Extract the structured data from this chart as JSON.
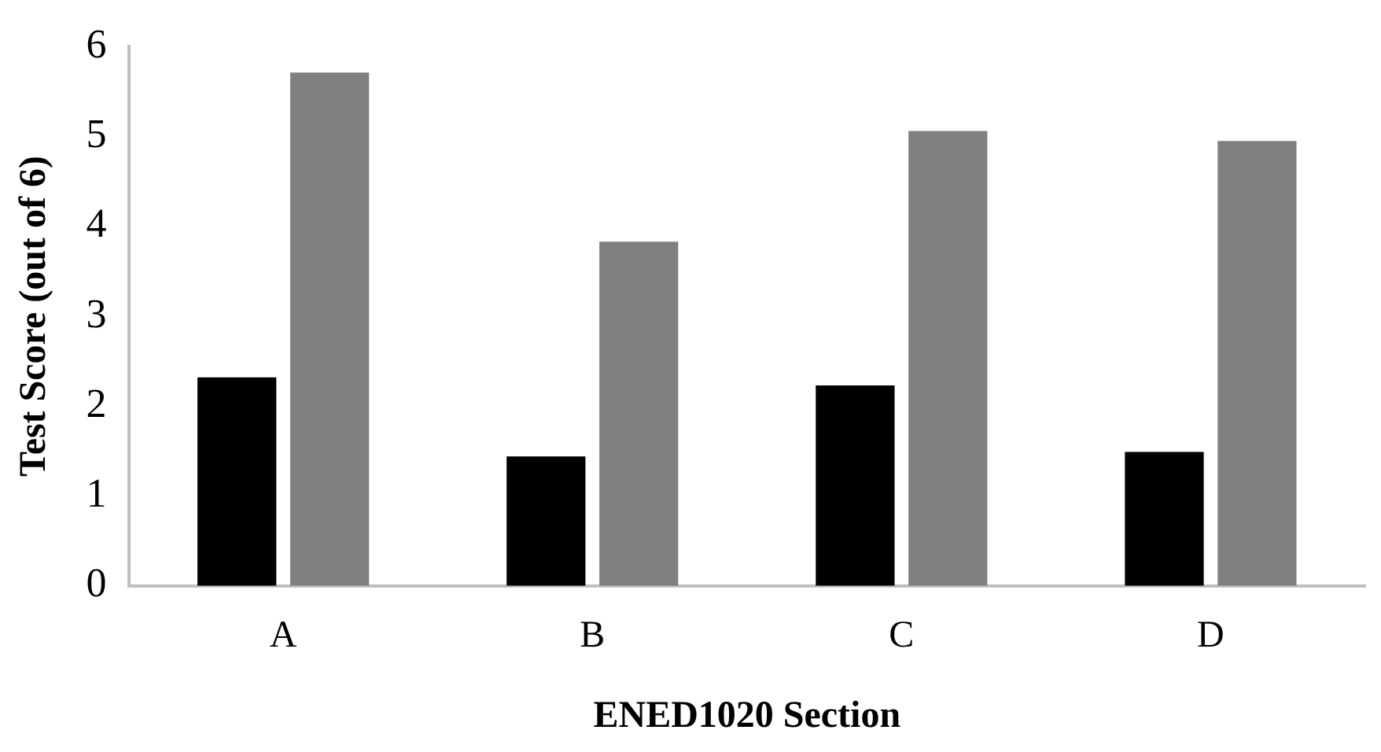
{
  "chart_data": {
    "type": "bar",
    "xlabel": "ENED1020 Section",
    "ylabel": "Test Score (out of 6)",
    "categories": [
      "A",
      "B",
      "C",
      "D"
    ],
    "series": [
      {
        "color": "#000000",
        "values": [
          2.32,
          1.44,
          2.23,
          1.49
        ]
      },
      {
        "color": "#808080",
        "values": [
          5.71,
          3.83,
          5.06,
          4.95
        ]
      }
    ],
    "ylim": [
      0,
      6
    ],
    "yticks": [
      0,
      1,
      2,
      3,
      4,
      5,
      6
    ],
    "grid": false,
    "legend": false
  }
}
